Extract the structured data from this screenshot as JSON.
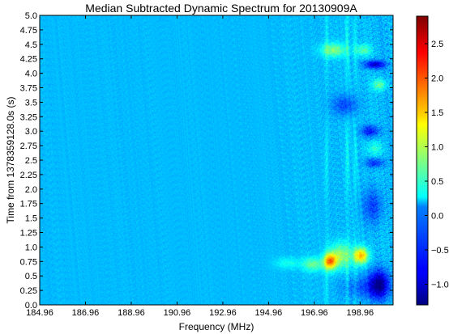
{
  "chart_data": {
    "type": "heatmap",
    "title": "Median Subtracted Dynamic Spectrum for 20130909A",
    "xlabel": "Frequency (MHz)",
    "ylabel": "Time from 1378359128.0s (s)",
    "x_ticks": [
      "184.96",
      "186.96",
      "188.96",
      "190.96",
      "192.96",
      "194.96",
      "196.96",
      "198.96"
    ],
    "x_tick_values": [
      184.96,
      186.96,
      188.96,
      190.96,
      192.96,
      194.96,
      196.96,
      198.96
    ],
    "xlim": [
      184.96,
      200.4
    ],
    "y_ticks": [
      "0.0",
      "0.25",
      "0.5",
      "0.75",
      "1.0",
      "1.25",
      "1.5",
      "1.75",
      "2.0",
      "2.25",
      "2.5",
      "2.75",
      "3.0",
      "3.25",
      "3.5",
      "3.75",
      "4.0",
      "4.25",
      "4.5",
      "4.75",
      "5.0"
    ],
    "y_tick_values": [
      0.0,
      0.25,
      0.5,
      0.75,
      1.0,
      1.25,
      1.5,
      1.75,
      2.0,
      2.25,
      2.5,
      2.75,
      3.0,
      3.25,
      3.5,
      3.75,
      4.0,
      4.25,
      4.5,
      4.75,
      5.0
    ],
    "ylim": [
      0.0,
      5.0
    ],
    "colorbar": {
      "colormap": "jet",
      "range": [
        -1.3,
        2.9
      ],
      "ticks": [
        "2.5",
        "2.0",
        "1.5",
        "1.0",
        "0.5",
        "0.0",
        "−0.5",
        "−1.0"
      ],
      "tick_values": [
        2.5,
        2.0,
        1.5,
        1.0,
        0.5,
        0.0,
        -0.5,
        -1.0
      ]
    },
    "features": [
      {
        "kind": "hot",
        "f_center": 197.65,
        "t_center": 0.75,
        "f_width": 0.28,
        "t_width": 0.14,
        "amp": 1.7
      },
      {
        "kind": "hot",
        "f_center": 199.0,
        "t_center": 0.85,
        "f_width": 0.32,
        "t_width": 0.14,
        "amp": 1.6
      },
      {
        "kind": "hot",
        "f_center": 198.1,
        "t_center": 0.85,
        "f_width": 0.45,
        "t_width": 0.22,
        "amp": 0.9
      },
      {
        "kind": "hot",
        "f_center": 196.9,
        "t_center": 0.7,
        "f_width": 0.45,
        "t_width": 0.12,
        "amp": 0.7
      },
      {
        "kind": "hot",
        "f_center": 195.8,
        "t_center": 0.72,
        "f_width": 0.55,
        "t_width": 0.1,
        "amp": 0.35
      },
      {
        "kind": "hot",
        "f_center": 197.8,
        "t_center": 4.4,
        "f_width": 0.55,
        "t_width": 0.12,
        "amp": 0.8
      },
      {
        "kind": "hot",
        "f_center": 199.1,
        "t_center": 4.4,
        "f_width": 0.35,
        "t_width": 0.1,
        "amp": 0.6
      },
      {
        "kind": "hot",
        "f_center": 199.8,
        "t_center": 3.8,
        "f_width": 0.3,
        "t_width": 0.1,
        "amp": 0.7
      },
      {
        "kind": "hot",
        "f_center": 199.6,
        "t_center": 2.7,
        "f_width": 0.35,
        "t_width": 0.12,
        "amp": 0.4
      },
      {
        "kind": "cold",
        "f_center": 199.8,
        "t_center": 0.35,
        "f_width": 0.45,
        "t_width": 0.25,
        "amp": -1.2
      },
      {
        "kind": "cold",
        "f_center": 199.6,
        "t_center": 4.15,
        "f_width": 0.45,
        "t_width": 0.07,
        "amp": -1.0
      },
      {
        "kind": "cold",
        "f_center": 198.3,
        "t_center": 3.45,
        "f_width": 0.55,
        "t_width": 0.18,
        "amp": -0.5
      },
      {
        "kind": "cold",
        "f_center": 199.4,
        "t_center": 3.0,
        "f_width": 0.4,
        "t_width": 0.1,
        "amp": -0.7
      },
      {
        "kind": "cold",
        "f_center": 199.6,
        "t_center": 2.45,
        "f_width": 0.4,
        "t_width": 0.08,
        "amp": -0.6
      },
      {
        "kind": "cold",
        "f_center": 199.5,
        "t_center": 1.7,
        "f_width": 0.45,
        "t_width": 0.3,
        "amp": -0.5
      },
      {
        "kind": "cold",
        "f_center": 199.0,
        "t_center": 0.3,
        "f_width": 0.8,
        "t_width": 0.2,
        "amp": -0.4
      }
    ],
    "stripes": [
      {
        "f": 197.5,
        "amp": 0.25
      },
      {
        "f": 198.4,
        "amp": 0.3
      },
      {
        "f": 198.75,
        "amp": 0.2
      }
    ]
  }
}
